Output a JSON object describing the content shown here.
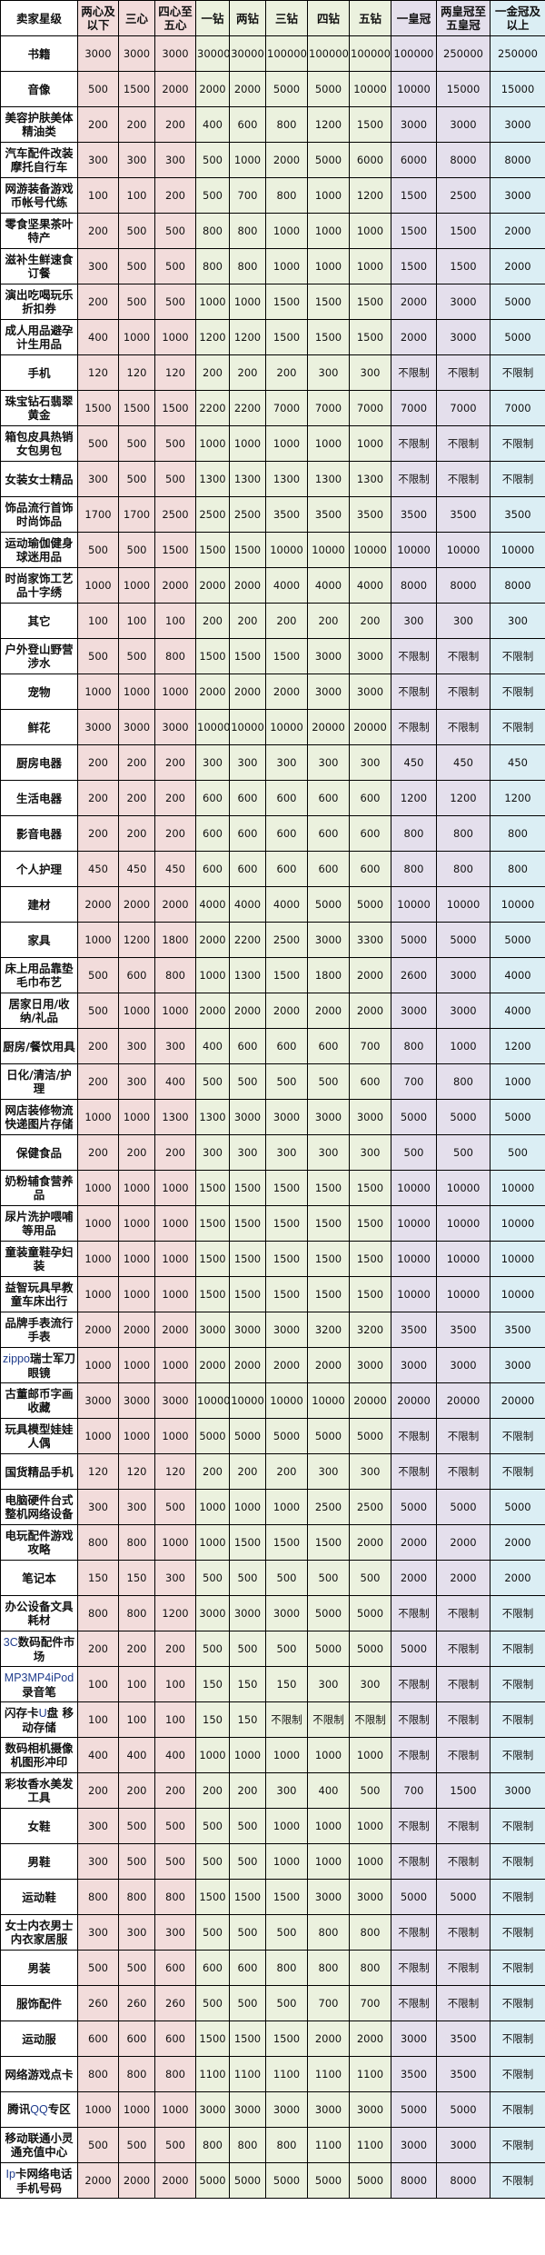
{
  "colors": {
    "heart": "#f2dcdb",
    "diamond": "#ebf1de",
    "crown": "#e4dfec",
    "gold_crown": "#dbeef4"
  },
  "header": {
    "first": "卖家星级",
    "levels": [
      "两心及以下",
      "三心",
      "四心至五心",
      "一钻",
      "两钻",
      "三钻",
      "四钻",
      "五钻",
      "一皇冠",
      "两皇冠至五皇冠",
      "一金冠及以上"
    ],
    "groups": [
      0,
      0,
      0,
      1,
      1,
      1,
      1,
      1,
      2,
      2,
      3
    ]
  },
  "rows": [
    {
      "category": "书籍",
      "values": [
        "3000",
        "3000",
        "3000",
        "30000",
        "30000",
        "100000",
        "100000",
        "100000",
        "100000",
        "250000",
        "250000"
      ]
    },
    {
      "category": "音像",
      "values": [
        "500",
        "1500",
        "2000",
        "2000",
        "2000",
        "5000",
        "5000",
        "10000",
        "10000",
        "15000",
        "15000"
      ]
    },
    {
      "category": "美容护肤美体精油类",
      "values": [
        "200",
        "200",
        "200",
        "400",
        "600",
        "800",
        "1200",
        "1500",
        "3000",
        "3000",
        "3000"
      ]
    },
    {
      "category": "汽车配件改装摩托自行车",
      "values": [
        "300",
        "300",
        "300",
        "500",
        "1000",
        "2000",
        "5000",
        "6000",
        "6000",
        "8000",
        "8000"
      ]
    },
    {
      "category": "网游装备游戏币帐号代练",
      "values": [
        "100",
        "100",
        "200",
        "500",
        "700",
        "800",
        "1000",
        "1200",
        "1500",
        "2500",
        "3000"
      ]
    },
    {
      "category": "零食坚果茶叶特产",
      "values": [
        "200",
        "500",
        "500",
        "800",
        "800",
        "1000",
        "1000",
        "1000",
        "1500",
        "1500",
        "2000"
      ]
    },
    {
      "category": "滋补生鲜速食订餐",
      "values": [
        "300",
        "500",
        "500",
        "800",
        "800",
        "1000",
        "1000",
        "1000",
        "1500",
        "1500",
        "2000"
      ]
    },
    {
      "category": "演出吃喝玩乐折扣券",
      "values": [
        "200",
        "500",
        "500",
        "1000",
        "1000",
        "1500",
        "1500",
        "1500",
        "2000",
        "3000",
        "5000"
      ]
    },
    {
      "category": "成人用品避孕计生用品",
      "values": [
        "400",
        "1000",
        "1000",
        "1200",
        "1200",
        "1500",
        "1500",
        "1500",
        "2000",
        "3000",
        "5000"
      ]
    },
    {
      "category": "手机",
      "values": [
        "120",
        "120",
        "120",
        "200",
        "200",
        "200",
        "300",
        "300",
        "不限制",
        "不限制",
        "不限制"
      ]
    },
    {
      "category": "珠宝钻石翡翠黄金",
      "values": [
        "1500",
        "1500",
        "1500",
        "2200",
        "2200",
        "7000",
        "7000",
        "7000",
        "7000",
        "7000",
        "7000"
      ]
    },
    {
      "category": "箱包皮具热销女包男包",
      "values": [
        "500",
        "500",
        "500",
        "1000",
        "1000",
        "1000",
        "1000",
        "1000",
        "不限制",
        "不限制",
        "不限制"
      ]
    },
    {
      "category": "女装女士精品",
      "values": [
        "300",
        "500",
        "500",
        "1300",
        "1300",
        "1300",
        "1300",
        "1300",
        "不限制",
        "不限制",
        "不限制"
      ]
    },
    {
      "category": "饰品流行首饰时尚饰品",
      "values": [
        "1700",
        "1700",
        "2500",
        "2500",
        "2500",
        "3500",
        "3500",
        "3500",
        "3500",
        "3500",
        "3500"
      ]
    },
    {
      "category": "运动瑜伽健身球迷用品",
      "values": [
        "500",
        "500",
        "1500",
        "1500",
        "1500",
        "10000",
        "10000",
        "10000",
        "10000",
        "10000",
        "10000"
      ]
    },
    {
      "category": "时尚家饰工艺品十字绣",
      "values": [
        "1000",
        "1000",
        "2000",
        "2000",
        "2000",
        "4000",
        "4000",
        "4000",
        "8000",
        "8000",
        "8000"
      ]
    },
    {
      "category": "其它",
      "values": [
        "100",
        "100",
        "100",
        "200",
        "200",
        "200",
        "200",
        "200",
        "300",
        "300",
        "300"
      ]
    },
    {
      "category": "户外登山野营涉水",
      "values": [
        "500",
        "500",
        "800",
        "1500",
        "1500",
        "1500",
        "3000",
        "3000",
        "不限制",
        "不限制",
        "不限制"
      ]
    },
    {
      "category": "宠物",
      "values": [
        "1000",
        "1000",
        "1000",
        "2000",
        "2000",
        "2000",
        "3000",
        "3000",
        "不限制",
        "不限制",
        "不限制"
      ]
    },
    {
      "category": "鲜花",
      "values": [
        "3000",
        "3000",
        "3000",
        "10000",
        "10000",
        "10000",
        "20000",
        "20000",
        "不限制",
        "不限制",
        "不限制"
      ]
    },
    {
      "category": "厨房电器",
      "values": [
        "200",
        "200",
        "200",
        "300",
        "300",
        "300",
        "300",
        "300",
        "450",
        "450",
        "450"
      ]
    },
    {
      "category": "生活电器",
      "values": [
        "200",
        "200",
        "200",
        "600",
        "600",
        "600",
        "600",
        "600",
        "1200",
        "1200",
        "1200"
      ]
    },
    {
      "category": "影音电器",
      "values": [
        "200",
        "200",
        "200",
        "600",
        "600",
        "600",
        "600",
        "600",
        "800",
        "800",
        "800"
      ]
    },
    {
      "category": "个人护理",
      "values": [
        "450",
        "450",
        "450",
        "600",
        "600",
        "600",
        "600",
        "600",
        "800",
        "800",
        "800"
      ]
    },
    {
      "category": "建材",
      "values": [
        "2000",
        "2000",
        "2000",
        "4000",
        "4000",
        "4000",
        "5000",
        "5000",
        "10000",
        "10000",
        "10000"
      ]
    },
    {
      "category": "家具",
      "values": [
        "1000",
        "1200",
        "1800",
        "2000",
        "2200",
        "2500",
        "3000",
        "3300",
        "5000",
        "5000",
        "5000"
      ]
    },
    {
      "category": "床上用品靠垫毛巾布艺",
      "values": [
        "500",
        "600",
        "800",
        "1000",
        "1300",
        "1500",
        "1800",
        "2000",
        "2600",
        "3000",
        "4000"
      ]
    },
    {
      "category": "居家日用/收纳/礼品",
      "values": [
        "500",
        "1000",
        "1000",
        "2000",
        "2000",
        "2000",
        "2000",
        "2000",
        "3000",
        "3000",
        "4000"
      ]
    },
    {
      "category": "厨房/餐饮用具",
      "values": [
        "200",
        "300",
        "300",
        "400",
        "600",
        "600",
        "600",
        "700",
        "800",
        "1000",
        "1200"
      ]
    },
    {
      "category": "日化/清洁/护理",
      "values": [
        "200",
        "300",
        "400",
        "500",
        "500",
        "500",
        "500",
        "600",
        "700",
        "800",
        "1000"
      ]
    },
    {
      "category": "网店装修物流快递图片存储",
      "values": [
        "1000",
        "1000",
        "1300",
        "1300",
        "3000",
        "3000",
        "3000",
        "3000",
        "5000",
        "5000",
        "5000"
      ]
    },
    {
      "category": "保健食品",
      "values": [
        "200",
        "200",
        "200",
        "300",
        "300",
        "300",
        "300",
        "300",
        "500",
        "500",
        "500"
      ]
    },
    {
      "category": "奶粉辅食营养品",
      "values": [
        "1000",
        "1000",
        "1000",
        "1500",
        "1500",
        "1500",
        "1500",
        "1500",
        "10000",
        "10000",
        "10000"
      ]
    },
    {
      "category": "尿片洗护喂哺等用品",
      "values": [
        "1000",
        "1000",
        "1000",
        "1500",
        "1500",
        "1500",
        "1500",
        "1500",
        "10000",
        "10000",
        "10000"
      ]
    },
    {
      "category": "童装童鞋孕妇装",
      "values": [
        "1000",
        "1000",
        "1000",
        "1500",
        "1500",
        "1500",
        "1500",
        "1500",
        "10000",
        "10000",
        "10000"
      ]
    },
    {
      "category": "益智玩具早教童车床出行",
      "values": [
        "1000",
        "1000",
        "1000",
        "1500",
        "1500",
        "1500",
        "1500",
        "1500",
        "10000",
        "10000",
        "10000"
      ]
    },
    {
      "category": "品牌手表流行手表",
      "values": [
        "2000",
        "2000",
        "2000",
        "3000",
        "3000",
        "3000",
        "3200",
        "3200",
        "3500",
        "3500",
        "3500"
      ]
    },
    {
      "category": "zippo瑞士军刀眼镜",
      "values": [
        "1000",
        "1000",
        "1000",
        "2000",
        "2000",
        "2000",
        "2000",
        "3000",
        "3000",
        "3000",
        "3000"
      ]
    },
    {
      "category": "古董邮币字画收藏",
      "values": [
        "3000",
        "3000",
        "3000",
        "10000",
        "10000",
        "10000",
        "10000",
        "20000",
        "20000",
        "20000",
        "20000"
      ]
    },
    {
      "category": "玩具模型娃娃人偶",
      "values": [
        "1000",
        "1000",
        "1000",
        "5000",
        "5000",
        "5000",
        "5000",
        "5000",
        "不限制",
        "不限制",
        "不限制"
      ]
    },
    {
      "category": "国货精品手机",
      "values": [
        "120",
        "120",
        "120",
        "200",
        "200",
        "200",
        "300",
        "300",
        "不限制",
        "不限制",
        "不限制"
      ]
    },
    {
      "category": "电脑硬件台式整机网络设备",
      "values": [
        "300",
        "300",
        "500",
        "1000",
        "1000",
        "1000",
        "2500",
        "2500",
        "5000",
        "5000",
        "5000"
      ]
    },
    {
      "category": "电玩配件游戏攻略",
      "values": [
        "800",
        "800",
        "1000",
        "1000",
        "1500",
        "1500",
        "1500",
        "2000",
        "2000",
        "2000",
        "2000"
      ]
    },
    {
      "category": "笔记本",
      "values": [
        "150",
        "150",
        "300",
        "500",
        "500",
        "500",
        "500",
        "500",
        "2000",
        "2000",
        "2000"
      ]
    },
    {
      "category": "办公设备文具耗材",
      "values": [
        "800",
        "800",
        "1200",
        "3000",
        "3000",
        "3000",
        "5000",
        "5000",
        "不限制",
        "不限制",
        "不限制"
      ]
    },
    {
      "category": "3C数码配件市场",
      "values": [
        "200",
        "200",
        "200",
        "500",
        "500",
        "500",
        "5000",
        "5000",
        "5000",
        "不限制",
        "不限制"
      ]
    },
    {
      "category": "MP3MP4iPod录音笔",
      "values": [
        "100",
        "100",
        "100",
        "150",
        "150",
        "150",
        "300",
        "300",
        "不限制",
        "不限制",
        "不限制"
      ]
    },
    {
      "category": "闪存卡U盘 移动存储",
      "values": [
        "100",
        "100",
        "100",
        "150",
        "150",
        "不限制",
        "不限制",
        "不限制",
        "不限制",
        "不限制",
        "不限制"
      ]
    },
    {
      "category": "数码相机摄像机图形冲印",
      "values": [
        "400",
        "400",
        "400",
        "1000",
        "1000",
        "1000",
        "1000",
        "1000",
        "不限制",
        "不限制",
        "不限制"
      ]
    },
    {
      "category": "彩妆香水美发工具",
      "values": [
        "200",
        "200",
        "200",
        "200",
        "200",
        "300",
        "400",
        "500",
        "700",
        "1500",
        "3000"
      ]
    },
    {
      "category": "女鞋",
      "values": [
        "300",
        "500",
        "500",
        "500",
        "500",
        "1000",
        "1000",
        "1000",
        "不限制",
        "不限制",
        "不限制"
      ]
    },
    {
      "category": "男鞋",
      "values": [
        "300",
        "500",
        "500",
        "500",
        "500",
        "1000",
        "1000",
        "1000",
        "不限制",
        "不限制",
        "不限制"
      ]
    },
    {
      "category": "运动鞋",
      "values": [
        "800",
        "800",
        "800",
        "1500",
        "1500",
        "1500",
        "3000",
        "3000",
        "5000",
        "5000",
        "不限制"
      ]
    },
    {
      "category": "女士内衣男士内衣家居服",
      "values": [
        "300",
        "300",
        "300",
        "500",
        "500",
        "500",
        "800",
        "800",
        "不限制",
        "不限制",
        "不限制"
      ]
    },
    {
      "category": "男装",
      "values": [
        "500",
        "500",
        "600",
        "600",
        "600",
        "800",
        "800",
        "800",
        "不限制",
        "不限制",
        "不限制"
      ]
    },
    {
      "category": "服饰配件",
      "values": [
        "260",
        "260",
        "260",
        "500",
        "500",
        "500",
        "700",
        "700",
        "不限制",
        "不限制",
        "不限制"
      ]
    },
    {
      "category": "运动服",
      "values": [
        "600",
        "600",
        "600",
        "1500",
        "1500",
        "1500",
        "2000",
        "2000",
        "3000",
        "3500",
        "不限制"
      ]
    },
    {
      "category": "网络游戏点卡",
      "values": [
        "800",
        "800",
        "800",
        "1100",
        "1100",
        "1100",
        "1100",
        "1100",
        "3500",
        "3500",
        "不限制"
      ]
    },
    {
      "category": "腾讯QQ专区",
      "values": [
        "1000",
        "1000",
        "1000",
        "3000",
        "3000",
        "3000",
        "3000",
        "3000",
        "5000",
        "5000",
        "不限制"
      ]
    },
    {
      "category": "移动联通小灵通充值中心",
      "values": [
        "500",
        "500",
        "500",
        "800",
        "800",
        "800",
        "1100",
        "1100",
        "3000",
        "3000",
        "不限制"
      ]
    },
    {
      "category": "Ip卡网络电话手机号码",
      "values": [
        "2000",
        "2000",
        "2000",
        "5000",
        "5000",
        "5000",
        "5000",
        "5000",
        "8000",
        "8000",
        "不限制"
      ]
    }
  ]
}
